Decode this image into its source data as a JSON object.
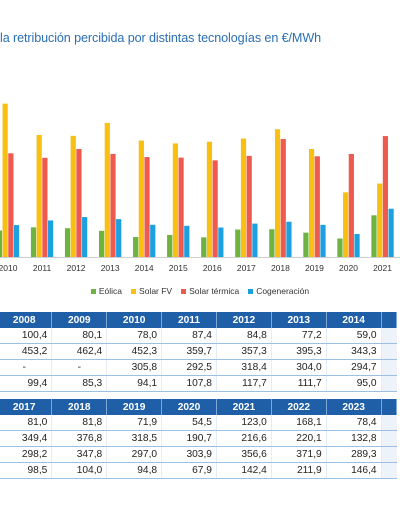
{
  "header": {
    "title": "la retribución percibida por distintas tecnologías en €/MWh"
  },
  "colors": {
    "eolica": "#6db33f",
    "solar_fv": "#f9c012",
    "solar_termica": "#ee5a4e",
    "cogeneracion": "#1ca0e0",
    "title": "#2a6fb4",
    "table_header": "#1f5fa8"
  },
  "chart_data": {
    "type": "bar",
    "categories": [
      "2010",
      "2011",
      "2012",
      "2013",
      "2014",
      "2015",
      "2016",
      "2017",
      "2018",
      "2019",
      "2020",
      "2021"
    ],
    "series": [
      {
        "name": "Eólica",
        "values": [
          78.0,
          87.4,
          84.8,
          77.2,
          59.0,
          65.0,
          58.0,
          81.0,
          81.8,
          71.9,
          54.5,
          123.0
        ]
      },
      {
        "name": "Solar FV",
        "values": [
          452.3,
          359.7,
          357.3,
          395.3,
          343.3,
          335.0,
          340.0,
          349.4,
          376.8,
          318.5,
          190.7,
          216.6
        ]
      },
      {
        "name": "Solar térmica",
        "values": [
          305.8,
          292.5,
          318.4,
          304.0,
          294.7,
          293.0,
          285.0,
          298.2,
          347.8,
          297.0,
          303.9,
          356.6
        ]
      },
      {
        "name": "Cogeneración",
        "values": [
          94.1,
          107.8,
          117.7,
          111.7,
          95.0,
          92.0,
          87.0,
          98.5,
          104.0,
          94.8,
          67.9,
          142.4
        ]
      }
    ]
  },
  "table1": {
    "years": [
      "2008",
      "2009",
      "2010",
      "2011",
      "2012",
      "2013",
      "2014"
    ],
    "rows": [
      [
        "100,4",
        "80,1",
        "78,0",
        "87,4",
        "84,8",
        "77,2",
        "59,0"
      ],
      [
        "453,2",
        "462,4",
        "452,3",
        "359,7",
        "357,3",
        "395,3",
        "343,3"
      ],
      [
        "-",
        "-",
        "305,8",
        "292,5",
        "318,4",
        "304,0",
        "294,7"
      ],
      [
        "99,4",
        "85,3",
        "94,1",
        "107,8",
        "117,7",
        "111,7",
        "95,0"
      ]
    ]
  },
  "table2": {
    "years": [
      "2017",
      "2018",
      "2019",
      "2020",
      "2021",
      "2022",
      "2023"
    ],
    "rows": [
      [
        "81,0",
        "81,8",
        "71,9",
        "54,5",
        "123,0",
        "168,1",
        "78,4"
      ],
      [
        "349,4",
        "376,8",
        "318,5",
        "190,7",
        "216,6",
        "220,1",
        "132,8"
      ],
      [
        "298,2",
        "347,8",
        "297,0",
        "303,9",
        "356,6",
        "371,9",
        "289,3"
      ],
      [
        "98,5",
        "104,0",
        "94,8",
        "67,9",
        "142,4",
        "211,9",
        "146,4"
      ]
    ]
  }
}
